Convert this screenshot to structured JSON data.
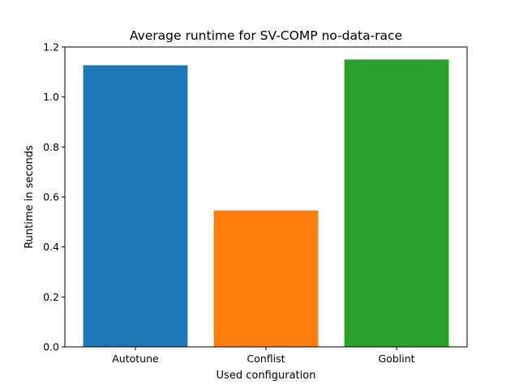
{
  "chart_data": {
    "type": "bar",
    "title": "Average runtime for SV-COMP no-data-race",
    "xlabel": "Used configuration",
    "ylabel": "Runtime in seconds",
    "categories": [
      "Autotune",
      "Conflist",
      "Goblint"
    ],
    "values": [
      1.127,
      0.546,
      1.15
    ],
    "colors": [
      "#1f77b4",
      "#ff7f0e",
      "#2ca02c"
    ],
    "ylim": [
      0,
      1.2
    ],
    "yticks": [
      "0.0",
      "0.2",
      "0.4",
      "0.6",
      "0.8",
      "1.0",
      "1.2"
    ],
    "grid": false,
    "legend": "none"
  }
}
